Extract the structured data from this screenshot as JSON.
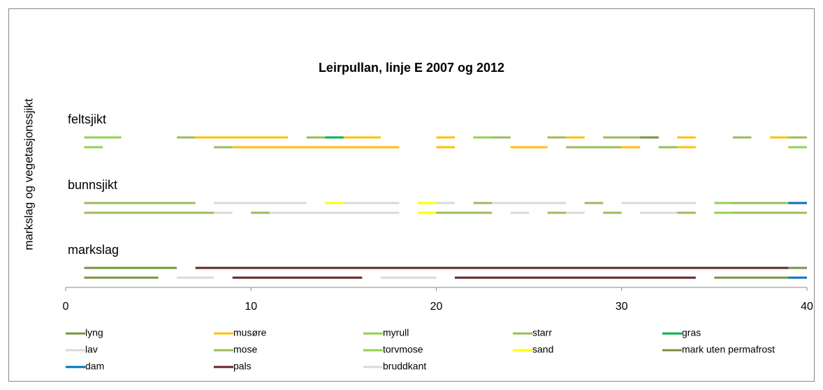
{
  "chart_data": {
    "type": "segment",
    "title": "Leirpullan, linje E 2007 og 2012",
    "y_label": "markslag og vegetasjonssjikt",
    "xlim": [
      0,
      40
    ],
    "xticks": [
      0,
      10,
      20,
      30,
      40
    ],
    "series": [
      {
        "name": "lyng",
        "color": "#77933c"
      },
      {
        "name": "musøre",
        "color": "#ffc000"
      },
      {
        "name": "myrull",
        "color": "#92d050"
      },
      {
        "name": "starr",
        "color": "#9bbb59"
      },
      {
        "name": "gras",
        "color": "#00b050"
      },
      {
        "name": "lav",
        "color": "#d9d9d9"
      },
      {
        "name": "mose",
        "color": "#9bbb59"
      },
      {
        "name": "torvmose",
        "color": "#92d050"
      },
      {
        "name": "sand",
        "color": "#ffff00"
      },
      {
        "name": "mark uten permafrost",
        "color": "#77933c"
      },
      {
        "name": "dam",
        "color": "#0070c0"
      },
      {
        "name": "pals",
        "color": "#632523"
      },
      {
        "name": "bruddkant",
        "color": "#d9d9d9"
      }
    ],
    "groups": [
      {
        "label": "feltsjikt",
        "rows": [
          [
            {
              "s": 2,
              "x": [
                1,
                3
              ]
            },
            {
              "s": 3,
              "x": [
                6,
                7
              ]
            },
            {
              "s": 1,
              "x": [
                7,
                12
              ]
            },
            {
              "s": 3,
              "x": [
                13,
                14
              ]
            },
            {
              "s": 4,
              "x": [
                14,
                15
              ]
            },
            {
              "s": 1,
              "x": [
                15,
                17
              ]
            },
            {
              "s": 1,
              "x": [
                20,
                21
              ]
            },
            {
              "s": 2,
              "x": [
                22,
                23
              ]
            },
            {
              "s": 3,
              "x": [
                23,
                24
              ]
            },
            {
              "s": 3,
              "x": [
                26,
                27
              ]
            },
            {
              "s": 1,
              "x": [
                27,
                28
              ]
            },
            {
              "s": 3,
              "x": [
                29,
                32
              ]
            },
            {
              "s": 9,
              "x": [
                31,
                32
              ]
            },
            {
              "s": 1,
              "x": [
                33,
                34
              ]
            },
            {
              "s": 3,
              "x": [
                36,
                37
              ]
            },
            {
              "s": 1,
              "x": [
                38,
                39
              ]
            },
            {
              "s": 3,
              "x": [
                39,
                40
              ]
            }
          ],
          [
            {
              "s": 2,
              "x": [
                1,
                2
              ]
            },
            {
              "s": 3,
              "x": [
                8,
                9
              ]
            },
            {
              "s": 1,
              "x": [
                9,
                18
              ]
            },
            {
              "s": 1,
              "x": [
                20,
                21
              ]
            },
            {
              "s": 1,
              "x": [
                24,
                26
              ]
            },
            {
              "s": 3,
              "x": [
                27,
                30
              ]
            },
            {
              "s": 1,
              "x": [
                30,
                31
              ]
            },
            {
              "s": 3,
              "x": [
                32,
                33
              ]
            },
            {
              "s": 1,
              "x": [
                33,
                34
              ]
            },
            {
              "s": 2,
              "x": [
                39,
                40
              ]
            }
          ]
        ]
      },
      {
        "label": "bunnsjikt",
        "rows": [
          [
            {
              "s": 6,
              "x": [
                1,
                7
              ]
            },
            {
              "s": 5,
              "x": [
                8,
                13
              ]
            },
            {
              "s": 8,
              "x": [
                14,
                15
              ]
            },
            {
              "s": 5,
              "x": [
                15,
                18
              ]
            },
            {
              "s": 8,
              "x": [
                19,
                20
              ]
            },
            {
              "s": 5,
              "x": [
                20,
                21
              ]
            },
            {
              "s": 6,
              "x": [
                22,
                23
              ]
            },
            {
              "s": 5,
              "x": [
                23,
                27
              ]
            },
            {
              "s": 6,
              "x": [
                28,
                29
              ]
            },
            {
              "s": 5,
              "x": [
                30,
                34
              ]
            },
            {
              "s": 7,
              "x": [
                35,
                36
              ]
            },
            {
              "s": 6,
              "x": [
                36,
                40
              ]
            },
            {
              "s": 10,
              "x": [
                39,
                40
              ]
            }
          ],
          [
            {
              "s": 6,
              "x": [
                1,
                8
              ]
            },
            {
              "s": 5,
              "x": [
                8,
                9
              ]
            },
            {
              "s": 6,
              "x": [
                10,
                11
              ]
            },
            {
              "s": 5,
              "x": [
                11,
                18
              ]
            },
            {
              "s": 8,
              "x": [
                19,
                20
              ]
            },
            {
              "s": 6,
              "x": [
                20,
                23
              ]
            },
            {
              "s": 5,
              "x": [
                24,
                25
              ]
            },
            {
              "s": 6,
              "x": [
                26,
                27
              ]
            },
            {
              "s": 5,
              "x": [
                27,
                28
              ]
            },
            {
              "s": 6,
              "x": [
                29,
                30
              ]
            },
            {
              "s": 5,
              "x": [
                31,
                33
              ]
            },
            {
              "s": 6,
              "x": [
                33,
                34
              ]
            },
            {
              "s": 7,
              "x": [
                35,
                36
              ]
            },
            {
              "s": 6,
              "x": [
                36,
                40
              ]
            }
          ]
        ]
      },
      {
        "label": "markslag",
        "rows": [
          [
            {
              "s": 0,
              "x": [
                1,
                6
              ]
            },
            {
              "s": 11,
              "x": [
                7,
                39
              ]
            },
            {
              "s": 0,
              "x": [
                39,
                40
              ]
            }
          ],
          [
            {
              "s": 0,
              "x": [
                1,
                5
              ]
            },
            {
              "s": 12,
              "x": [
                6,
                8
              ]
            },
            {
              "s": 11,
              "x": [
                9,
                16
              ]
            },
            {
              "s": 12,
              "x": [
                17,
                20
              ]
            },
            {
              "s": 11,
              "x": [
                21,
                34
              ]
            },
            {
              "s": 9,
              "x": [
                35,
                39
              ]
            },
            {
              "s": 10,
              "x": [
                39,
                40
              ]
            }
          ]
        ]
      }
    ]
  }
}
